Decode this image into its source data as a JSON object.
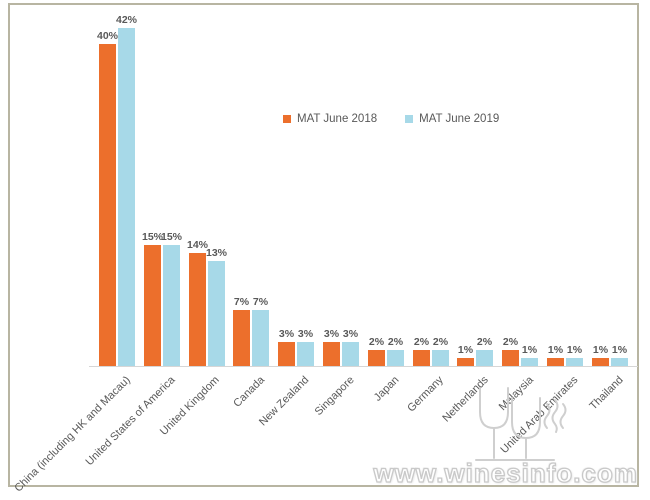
{
  "watermark": {
    "text": "www.winesinfo.com",
    "logo": "wine-glasses-icon"
  },
  "chart_data": {
    "type": "bar",
    "title": "",
    "xlabel": "",
    "ylabel": "",
    "categories": [
      "China (including HK and Macau)",
      "United States of America",
      "United Kingdom",
      "Canada",
      "New Zealand",
      "Singapore",
      "Japan",
      "Germany",
      "Netherlands",
      "Malaysia",
      "United Arab Emirates",
      "Thailand"
    ],
    "series": [
      {
        "name": "MAT June 2018",
        "color": "#EC6F2C",
        "values": [
          40,
          15,
          14,
          7,
          3,
          3,
          2,
          2,
          1,
          2,
          1,
          1
        ]
      },
      {
        "name": "MAT June 2019",
        "color": "#A7D9E8",
        "values": [
          42,
          15,
          13,
          7,
          3,
          3,
          2,
          2,
          2,
          1,
          1,
          1
        ]
      }
    ],
    "value_label_format": "{v}%",
    "ylim": [
      0,
      45
    ],
    "grid": false,
    "legend_position": "top-center",
    "axis_line_color": "#D6D6D6",
    "label_color": "#595959"
  }
}
